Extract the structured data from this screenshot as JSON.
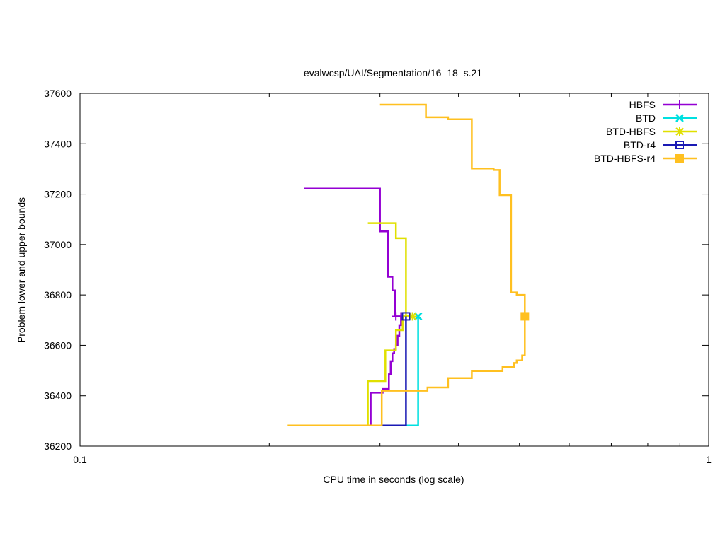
{
  "chart_data": {
    "type": "line",
    "title": "evalwcsp/UAI/Segmentation/16_18_s.21",
    "xlabel": "CPU time in seconds (log scale)",
    "ylabel": "Problem lower and upper bounds",
    "x_scale": "log",
    "xlim": [
      0.1,
      1
    ],
    "ylim": [
      36200,
      37600
    ],
    "x_ticks": [
      {
        "value": 0.1,
        "label": "0.1"
      },
      {
        "value": 1,
        "label": "1"
      }
    ],
    "y_ticks": [
      {
        "value": 36200,
        "label": "36200"
      },
      {
        "value": 36400,
        "label": "36400"
      },
      {
        "value": 36600,
        "label": "36600"
      },
      {
        "value": 36800,
        "label": "36800"
      },
      {
        "value": 37000,
        "label": "37000"
      },
      {
        "value": 37200,
        "label": "37200"
      },
      {
        "value": 37400,
        "label": "37400"
      },
      {
        "value": 37600,
        "label": "37600"
      }
    ],
    "grid": false,
    "legend_position": "top-right",
    "series": [
      {
        "name": "HBFS",
        "color": "#9400d3",
        "marker": "plus",
        "upper": [
          [
            0.227,
            37222
          ],
          [
            0.3,
            37222
          ],
          [
            0.3,
            37052
          ],
          [
            0.309,
            37052
          ],
          [
            0.309,
            36872
          ],
          [
            0.314,
            36872
          ],
          [
            0.314,
            36818
          ],
          [
            0.317,
            36818
          ],
          [
            0.317,
            36715
          ],
          [
            0.324,
            36715
          ]
        ],
        "lower": [
          [
            0.29,
            36282
          ],
          [
            0.29,
            36412
          ],
          [
            0.303,
            36412
          ],
          [
            0.303,
            36427
          ],
          [
            0.31,
            36427
          ],
          [
            0.31,
            36485
          ],
          [
            0.312,
            36485
          ],
          [
            0.312,
            36537
          ],
          [
            0.314,
            36537
          ],
          [
            0.314,
            36568
          ],
          [
            0.316,
            36568
          ],
          [
            0.316,
            36585
          ],
          [
            0.318,
            36585
          ],
          [
            0.318,
            36600
          ],
          [
            0.32,
            36600
          ],
          [
            0.32,
            36638
          ],
          [
            0.322,
            36638
          ],
          [
            0.322,
            36680
          ],
          [
            0.324,
            36680
          ],
          [
            0.324,
            36715
          ]
        ],
        "final": [
          0.324,
          36715
        ],
        "end_markers": [
          [
            0.318,
            36715
          ]
        ]
      },
      {
        "name": "BTD",
        "color": "#00e0e0",
        "marker": "x",
        "upper": [
          [
            0.345,
            36715
          ],
          [
            0.345,
            36282
          ],
          [
            0.33,
            36282
          ]
        ],
        "lower": [],
        "final": [
          0.345,
          36715
        ],
        "end_markers": []
      },
      {
        "name": "BTD-HBFS",
        "color": "#e0e000",
        "marker": "star",
        "upper": [
          [
            0.287,
            37085
          ],
          [
            0.318,
            37085
          ],
          [
            0.318,
            37025
          ],
          [
            0.33,
            37025
          ],
          [
            0.33,
            36715
          ],
          [
            0.338,
            36715
          ]
        ],
        "lower": [
          [
            0.214,
            36282
          ],
          [
            0.287,
            36282
          ],
          [
            0.287,
            36458
          ],
          [
            0.306,
            36458
          ],
          [
            0.306,
            36580
          ],
          [
            0.318,
            36580
          ],
          [
            0.318,
            36660
          ],
          [
            0.326,
            36660
          ],
          [
            0.326,
            36715
          ],
          [
            0.338,
            36715
          ]
        ],
        "final": [
          0.338,
          36715
        ],
        "end_markers": []
      },
      {
        "name": "BTD-r4",
        "color": "#1a1ab4",
        "marker": "square-open",
        "upper": [
          [
            0.33,
            36715
          ],
          [
            0.33,
            36282
          ],
          [
            0.29,
            36282
          ]
        ],
        "lower": [],
        "final": [
          0.33,
          36715
        ],
        "end_markers": []
      },
      {
        "name": "BTD-HBFS-r4",
        "color": "#ffc020",
        "marker": "square-filled",
        "upper": [
          [
            0.3,
            37555
          ],
          [
            0.355,
            37555
          ],
          [
            0.355,
            37505
          ],
          [
            0.385,
            37505
          ],
          [
            0.385,
            37497
          ],
          [
            0.42,
            37497
          ],
          [
            0.42,
            37302
          ],
          [
            0.455,
            37302
          ],
          [
            0.455,
            37296
          ],
          [
            0.465,
            37296
          ],
          [
            0.465,
            37196
          ],
          [
            0.485,
            37196
          ],
          [
            0.485,
            36810
          ],
          [
            0.495,
            36810
          ],
          [
            0.495,
            36800
          ],
          [
            0.51,
            36800
          ],
          [
            0.51,
            36715
          ]
        ],
        "lower": [
          [
            0.214,
            36282
          ],
          [
            0.302,
            36282
          ],
          [
            0.302,
            36420
          ],
          [
            0.357,
            36420
          ],
          [
            0.357,
            36433
          ],
          [
            0.385,
            36433
          ],
          [
            0.385,
            36470
          ],
          [
            0.42,
            36470
          ],
          [
            0.42,
            36498
          ],
          [
            0.47,
            36498
          ],
          [
            0.47,
            36515
          ],
          [
            0.49,
            36515
          ],
          [
            0.49,
            36530
          ],
          [
            0.495,
            36530
          ],
          [
            0.495,
            36540
          ],
          [
            0.505,
            36540
          ],
          [
            0.505,
            36560
          ],
          [
            0.51,
            36560
          ],
          [
            0.51,
            36715
          ]
        ],
        "final": [
          0.51,
          36715
        ],
        "end_markers": []
      }
    ]
  }
}
